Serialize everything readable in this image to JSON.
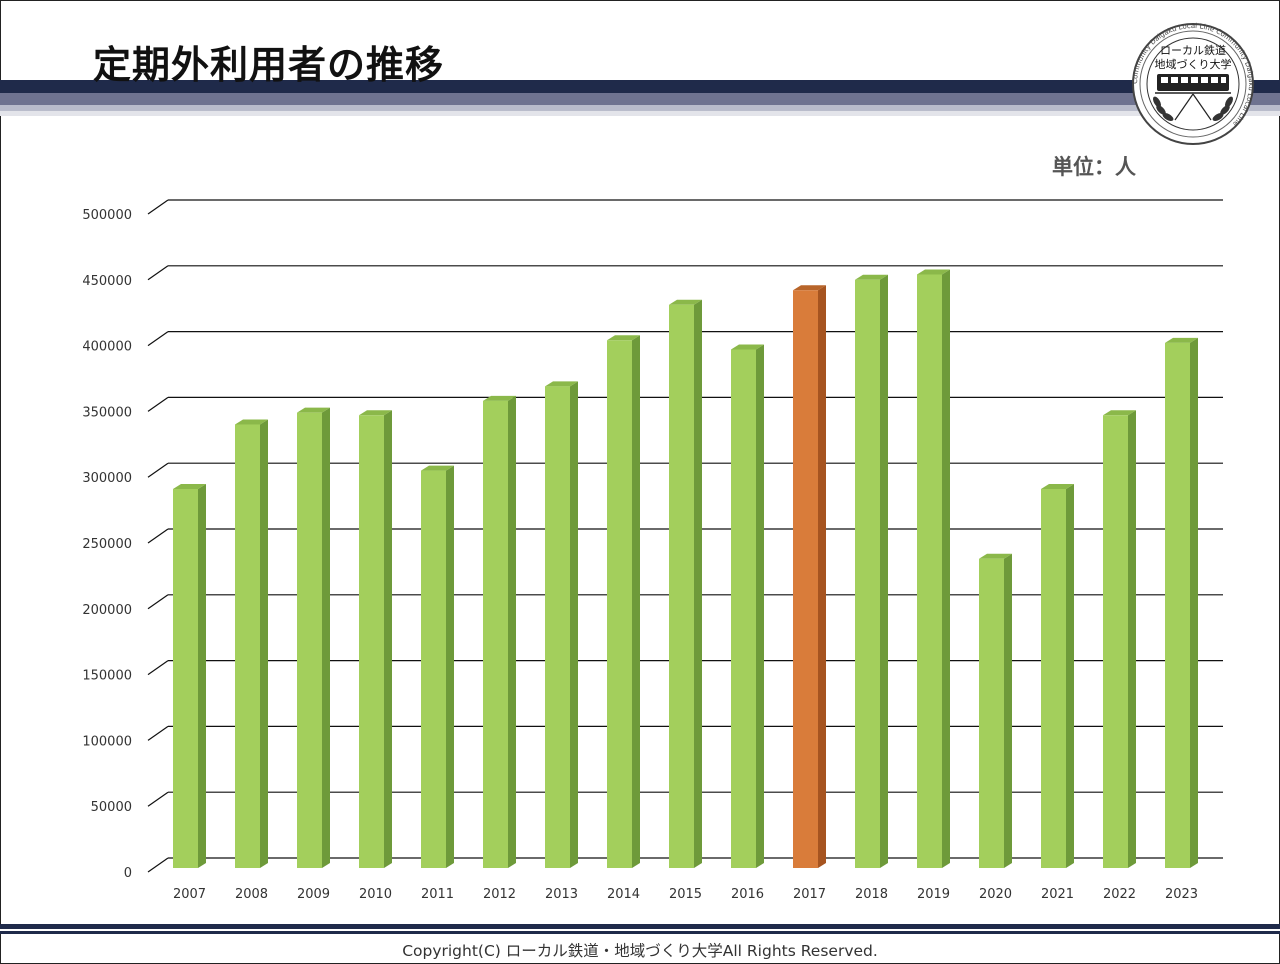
{
  "page": {
    "title": "定期外利用者の推移",
    "unit_label": "単位：人",
    "copyright": "Copyright(C) ローカル鉄道・地域づくり大学All Rights Reserved.",
    "logo": {
      "line1": "ローカル鉄道",
      "line2": "地域づくり大学",
      "ring_text": "Community Daigaku Local Line Community Daigaku Local Line"
    }
  },
  "colors": {
    "bar": "#a3cf5c",
    "bar_side": "#6e9a3a",
    "bar_top": "#8bb84a",
    "highlight": "#d97c3a",
    "highlight_side": "#a65420",
    "highlight_top": "#b8652a",
    "band_dark": "#1f2a4a",
    "band_mid": "#7a7e96",
    "gridline": "#111111"
  },
  "chart_data": {
    "type": "bar",
    "categories": [
      "2007",
      "2008",
      "2009",
      "2010",
      "2011",
      "2012",
      "2013",
      "2014",
      "2015",
      "2016",
      "2017",
      "2018",
      "2019",
      "2020",
      "2021",
      "2022",
      "2023"
    ],
    "values": [
      288000,
      337000,
      346000,
      344000,
      302000,
      355000,
      366000,
      401000,
      428000,
      394000,
      439000,
      447000,
      451000,
      235000,
      288000,
      344000,
      399000
    ],
    "highlight_category": "2017",
    "ylim": [
      0,
      500000
    ],
    "yticks": [
      "0",
      "50000",
      "100000",
      "150000",
      "200000",
      "250000",
      "300000",
      "350000",
      "400000",
      "450000",
      "500000"
    ],
    "grid": true,
    "legend": "none"
  }
}
